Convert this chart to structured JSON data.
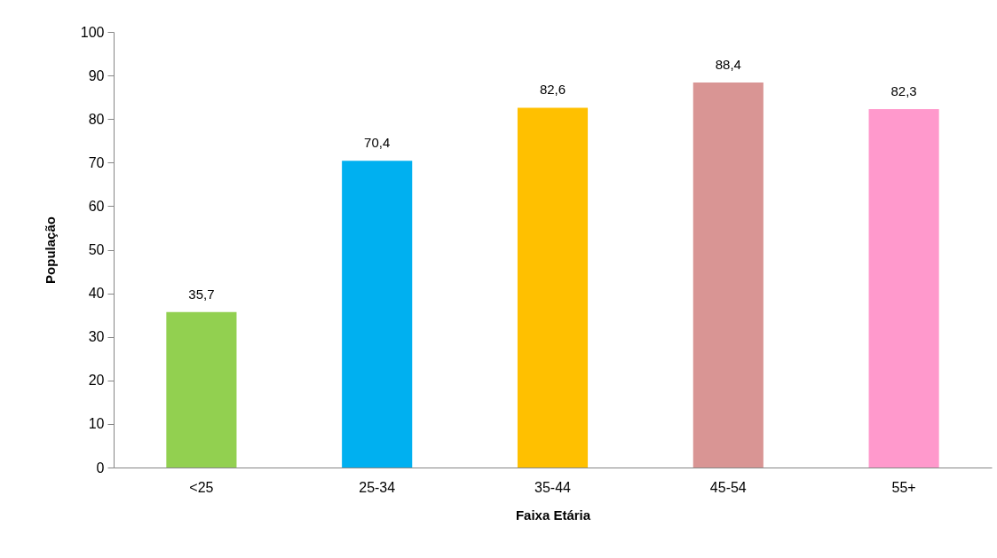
{
  "chart_data": {
    "type": "bar",
    "xlabel": "Faixa Etária",
    "ylabel": "População",
    "categories": [
      "<25",
      "25-34",
      "35-44",
      "45-54",
      "55+"
    ],
    "values": [
      35.7,
      70.4,
      82.6,
      88.4,
      82.3
    ],
    "colors": [
      "#92d050",
      "#00b0f0",
      "#ffc000",
      "#d99594",
      "#ff99cc"
    ],
    "value_labels": [
      "35,7",
      "70,4",
      "82,6",
      "88,4",
      "82,3"
    ],
    "ylim": [
      0,
      100
    ],
    "yticks": [
      0,
      10,
      20,
      30,
      40,
      50,
      60,
      70,
      80,
      90,
      100
    ]
  }
}
